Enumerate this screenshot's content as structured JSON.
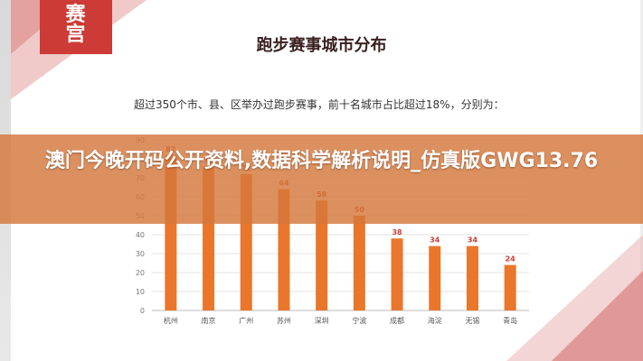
{
  "logo": {
    "text_line1": "赛",
    "text_line2": "宫"
  },
  "chart_data": {
    "type": "bar",
    "title": "跑步赛事城市分布",
    "subtitle": "超过350个市、县、区举办过跑步赛事，前十名城市占比超过18%，分别为：",
    "categories": [
      "杭州",
      "南京",
      "广州",
      "苏州",
      "深圳",
      "宁波",
      "成都",
      "海淀",
      "无锡",
      "青岛"
    ],
    "values": [
      82,
      76,
      72,
      64,
      58,
      50,
      38,
      34,
      34,
      24
    ],
    "ylim": [
      0,
      90
    ],
    "yticks": [
      0,
      10,
      20,
      30,
      40,
      50,
      60,
      70,
      80,
      90
    ],
    "grid": true,
    "bar_color": "#e9762b",
    "label_color": "#cc3b36"
  },
  "overlay": {
    "headline": "澳门今晚开码公开资料,数据科学解析说明_仿真版GWG13.76",
    "banner_color": "#d6783c"
  }
}
